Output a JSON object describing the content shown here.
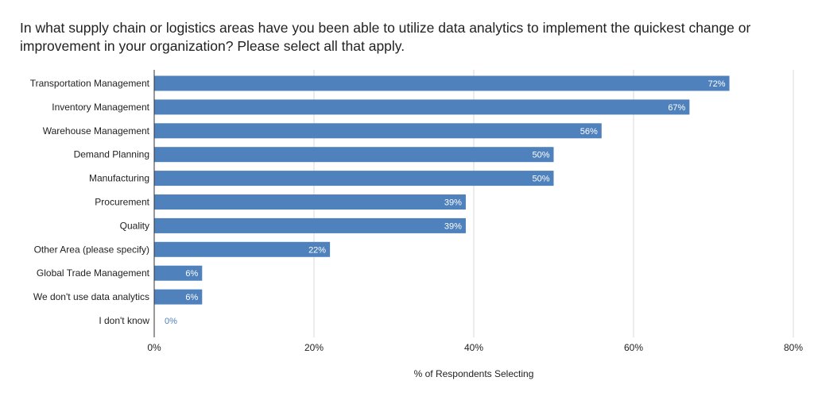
{
  "chart_data": {
    "type": "bar",
    "orientation": "horizontal",
    "title": "In what supply chain or logistics areas have you been able to utilize data analytics to implement the quickest change or improvement in your organization? Please select all that apply.",
    "xlabel": "% of Respondents Selecting",
    "ylabel": "",
    "categories": [
      "Transportation Management",
      "Inventory Management",
      "Warehouse Management",
      "Demand Planning",
      "Manufacturing",
      "Procurement",
      "Quality",
      "Other Area (please specify)",
      "Global Trade Management",
      "We don't use data analytics",
      "I don't know"
    ],
    "values": [
      72,
      67,
      56,
      50,
      50,
      39,
      39,
      22,
      6,
      6,
      0
    ],
    "value_labels": [
      "72%",
      "67%",
      "56%",
      "50%",
      "50%",
      "39%",
      "39%",
      "22%",
      "6%",
      "6%",
      "0%"
    ],
    "xlim": [
      0,
      80
    ],
    "xticks": [
      0,
      20,
      40,
      60,
      80
    ],
    "xtick_labels": [
      "0%",
      "20%",
      "40%",
      "60%",
      "80%"
    ],
    "grid": true,
    "bar_color": "#4f81bd",
    "grid_color": "#d9d9d9",
    "axis_color": "#333333",
    "inside_label_color": "#ffffff",
    "outside_label_color": "#4f81bd"
  }
}
